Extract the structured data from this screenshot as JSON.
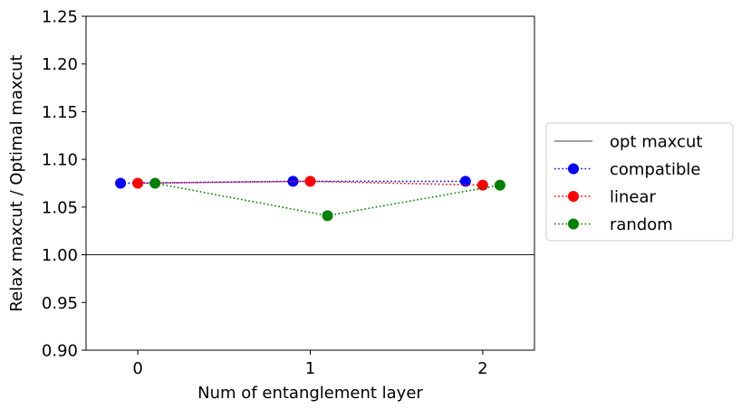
{
  "chart_data": {
    "type": "line",
    "xlabel": "Num of entanglement layer",
    "ylabel": "Relax maxcut / Optimal maxcut",
    "xlim": [
      -0.3,
      2.3
    ],
    "ylim": [
      0.9,
      1.25
    ],
    "x_ticks": [
      "0",
      "1",
      "2"
    ],
    "y_ticks": [
      "0.90",
      "0.95",
      "1.00",
      "1.05",
      "1.10",
      "1.15",
      "1.20",
      "1.25"
    ],
    "reference_line": {
      "name": "opt maxcut",
      "y": 1.0,
      "color": "#000000"
    },
    "series": [
      {
        "name": "compatible",
        "color": "#0000ff",
        "x": [
          -0.1,
          0.9,
          1.9
        ],
        "y": [
          1.075,
          1.077,
          1.077
        ]
      },
      {
        "name": "linear",
        "color": "#ff0000",
        "x": [
          0.0,
          1.0,
          2.0
        ],
        "y": [
          1.075,
          1.077,
          1.073
        ]
      },
      {
        "name": "random",
        "color": "#008000",
        "x": [
          0.1,
          1.1,
          2.1
        ],
        "y": [
          1.075,
          1.041,
          1.073
        ]
      }
    ],
    "grid": false,
    "legend_position": "outside-right"
  }
}
